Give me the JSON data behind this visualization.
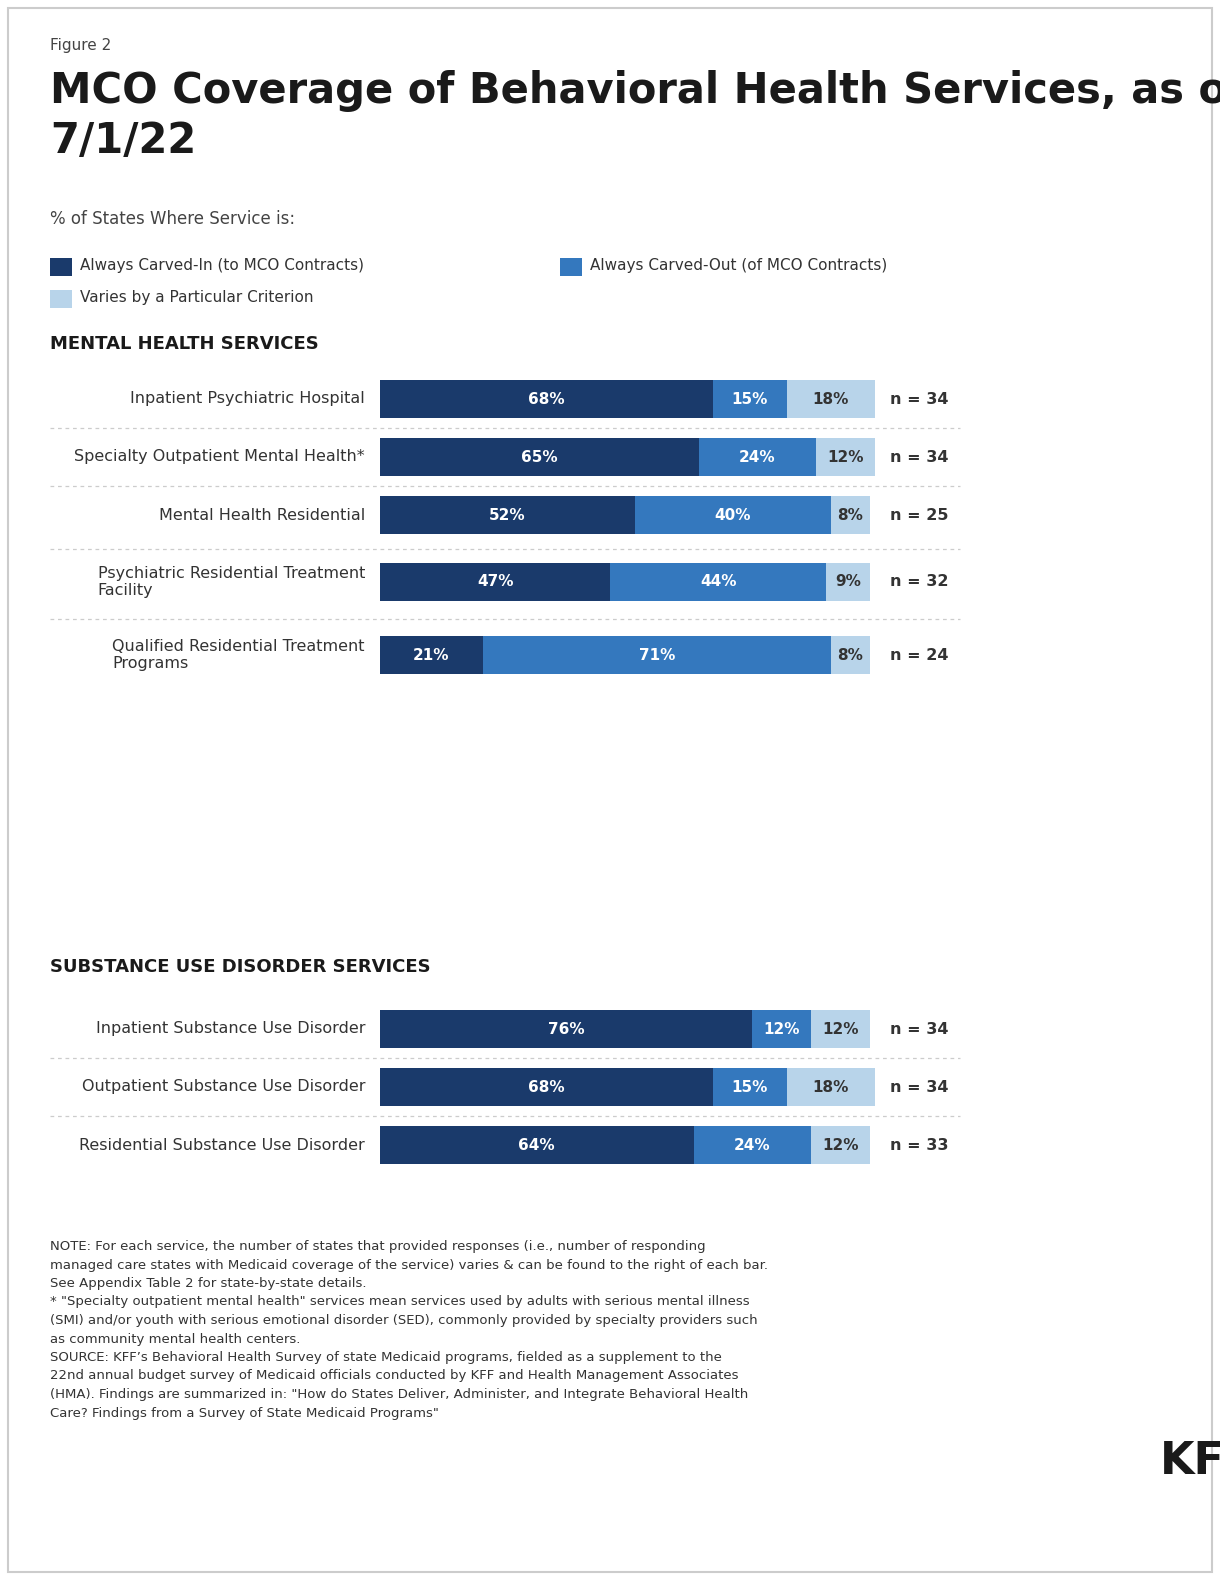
{
  "figure_label": "Figure 2",
  "title_line1": "MCO Coverage of Behavioral Health Services, as of",
  "title_line2": "7/1/22",
  "subtitle": "% of States Where Service is:",
  "legend": [
    {
      "label": "Always Carved-In (to MCO Contracts)",
      "color": "#1a3a6b"
    },
    {
      "label": "Always Carved-Out (of MCO Contracts)",
      "color": "#3478be"
    },
    {
      "label": "Varies by a Particular Criterion",
      "color": "#b8d4ea"
    }
  ],
  "section_headers": [
    "MENTAL HEALTH SERVICES",
    "SUBSTANCE USE DISORDER SERVICES"
  ],
  "categories": [
    "Inpatient Psychiatric Hospital",
    "Specialty Outpatient Mental Health*",
    "Mental Health Residential",
    "Psychiatric Residential Treatment\nFacility",
    "Qualified Residential Treatment\nPrograms",
    "Inpatient Substance Use Disorder",
    "Outpatient Substance Use Disorder",
    "Residential Substance Use Disorder"
  ],
  "values": [
    [
      68,
      15,
      18
    ],
    [
      65,
      24,
      12
    ],
    [
      52,
      40,
      8
    ],
    [
      47,
      44,
      9
    ],
    [
      21,
      71,
      8
    ],
    [
      76,
      12,
      12
    ],
    [
      68,
      15,
      18
    ],
    [
      64,
      24,
      12
    ]
  ],
  "n_values": [
    34,
    34,
    25,
    32,
    24,
    34,
    34,
    33
  ],
  "colors": [
    "#1a3a6b",
    "#3478be",
    "#b8d4ea"
  ],
  "note_text": "NOTE: For each service, the number of states that provided responses (i.e., number of responding\nmanaged care states with Medicaid coverage of the service) varies & can be found to the right of each bar.\nSee Appendix Table 2 for state-by-state details.\n* \"Specialty outpatient mental health\" services mean services used by adults with serious mental illness\n(SMI) and/or youth with serious emotional disorder (SED), commonly provided by specialty providers such\nas community mental health centers.\nSOURCE: KFF’s Behavioral Health Survey of state Medicaid programs, fielded as a supplement to the\n22nd annual budget survey of Medicaid officials conducted by KFF and Health Management Associates\n(HMA). Findings are summarized in: \"How do States Deliver, Administer, and Integrate Behavioral Health\nCare? Findings from a Survey of State Medicaid Programs\""
}
